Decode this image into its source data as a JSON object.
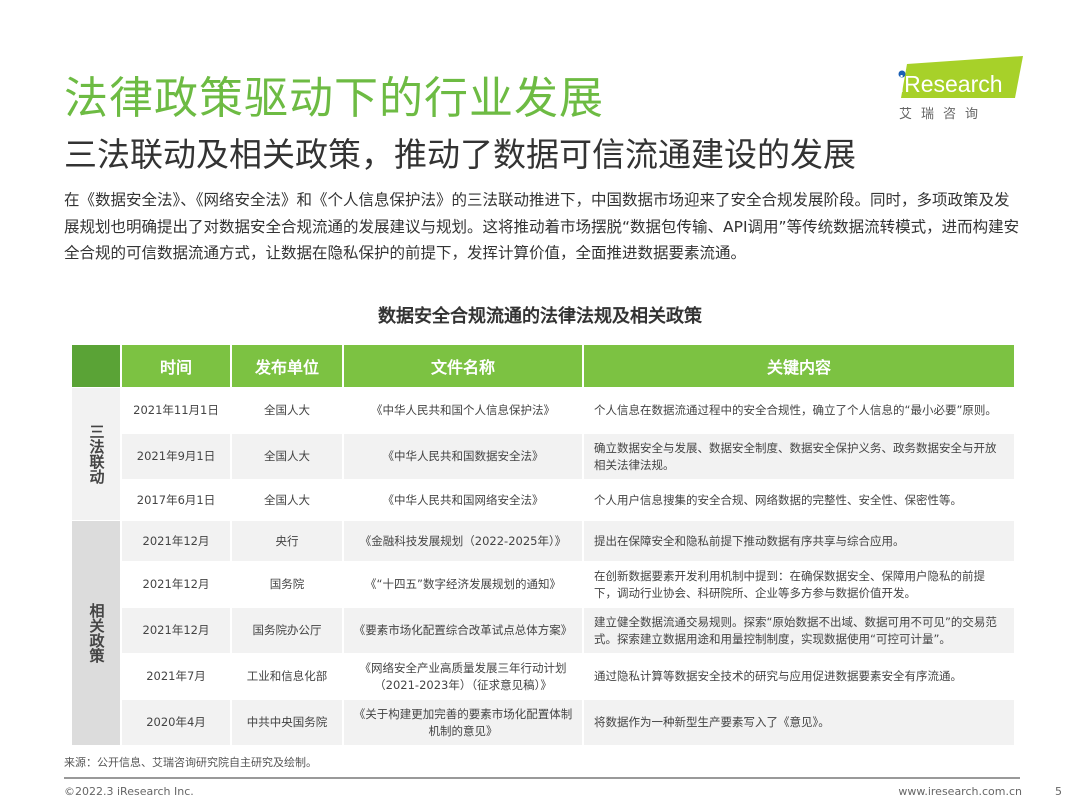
{
  "title": "法律政策驱动下的行业发展",
  "subtitle": "三法联动及相关政策，推动了数据可信流通建设的发展",
  "intro": "在《数据安全法》、《网络安全法》和《个人信息保护法》的三法联动推进下，中国数据市场迎来了安全合规发展阶段。同时，多项政策及发展规划也明确提出了对数据安全合规流通的发展建议与规划。这将推动着市场摆脱“数据包传输、API调用”等传统数据流转模式，进而构建安全合规的可信数据流通方式，让数据在隐私保护的前提下，发挥计算价值，全面推进数据要素流通。",
  "logo": {
    "text": "iResearch",
    "cn": "艾 瑞 咨 询",
    "color": "#a7d129"
  },
  "table": {
    "title": "数据安全合规流通的法律法规及相关政策",
    "headers": [
      "",
      "时间",
      "发布单位",
      "文件名称",
      "关键内容"
    ],
    "groups": [
      {
        "label": "三法联动",
        "rows": [
          [
            "2021年11月1日",
            "全国人大",
            "《中华人民共和国个人信息保护法》",
            "个人信息在数据流通过程中的安全合规性，确立了个人信息的“最小必要”原则。"
          ],
          [
            "2021年9月1日",
            "全国人大",
            "《中华人民共和国数据安全法》",
            "确立数据安全与发展、数据安全制度、数据安全保护义务、政务数据安全与开放相关法律法规。"
          ],
          [
            "2017年6月1日",
            "全国人大",
            "《中华人民共和国网络安全法》",
            "个人用户信息搜集的安全合规、网络数据的完整性、安全性、保密性等。"
          ]
        ]
      },
      {
        "label": "相关政策",
        "rows": [
          [
            "2021年12月",
            "央行",
            "《金融科技发展规划（2022-2025年）》",
            "提出在保障安全和隐私前提下推动数据有序共享与综合应用。"
          ],
          [
            "2021年12月",
            "国务院",
            "《“十四五”数字经济发展规划的通知》",
            "在创新数据要素开发利用机制中提到：在确保数据安全、保障用户隐私的前提下，调动行业协会、科研院所、企业等多方参与数据价值开发。"
          ],
          [
            "2021年12月",
            "国务院办公厅",
            "《要素市场化配置综合改革试点总体方案》",
            "建立健全数据流通交易规则。探索“原始数据不出域、数据可用不可见”的交易范式。探索建立数据用途和用量控制制度，实现数据使用“可控可计量”。"
          ],
          [
            "2021年7月",
            "工业和信息化部",
            "《网络安全产业高质量发展三年行动计划（2021-2023年）（征求意见稿）》",
            "通过隐私计算等数据安全技术的研究与应用促进数据要素安全有序流通。"
          ],
          [
            "2020年4月",
            "中共中央国务院",
            "《关于构建更加完善的要素市场化配置体制机制的意见》",
            "将数据作为一种新型生产要素写入了《意见》。"
          ]
        ]
      }
    ]
  },
  "footer": {
    "source": "来源：公开信息、艾瑞咨询研究院自主研究及绘制。",
    "copyright": "©2022.3 iResearch Inc.",
    "url": "www.iresearch.com.cn",
    "page": "5"
  }
}
